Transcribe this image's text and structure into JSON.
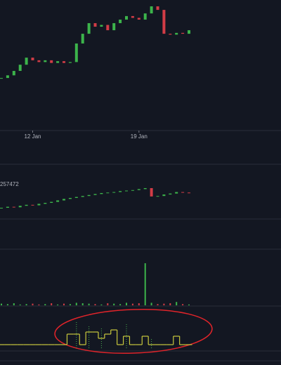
{
  "chart_data": [
    {
      "type": "candlestick",
      "up_color": "#3cb44b",
      "down_color": "#d23c46",
      "values": [
        15,
        18,
        23,
        30,
        38,
        35,
        33,
        35,
        32,
        34,
        32,
        33,
        54,
        65,
        77,
        73,
        75,
        69,
        77,
        81,
        85,
        83,
        81,
        88,
        96,
        92,
        65,
        64,
        66,
        65,
        69
      ],
      "ylim": [
        0,
        100
      ],
      "xticks": [
        {
          "value": 5,
          "label": "12 Jan"
        },
        {
          "value": 22,
          "label": "19 Jan"
        }
      ]
    },
    {
      "type": "candlestick",
      "up_color": "#3cb44b",
      "down_color": "#d23c46",
      "value_label": "257472",
      "values": [
        20,
        22,
        21,
        24,
        26,
        25,
        28,
        30,
        32,
        35,
        38,
        40,
        42,
        44,
        46,
        48,
        50,
        51,
        52,
        54,
        55,
        56,
        58,
        60,
        43,
        44,
        47,
        49,
        52,
        51,
        50
      ],
      "ylim": [
        0,
        100
      ]
    },
    {
      "type": "bar",
      "colors": [
        "#3cb44b",
        "#d23c46"
      ],
      "values": [
        4,
        3,
        5,
        2,
        3,
        4,
        2,
        3,
        5,
        2,
        4,
        3,
        6,
        5,
        4,
        3,
        2,
        5,
        4,
        3,
        6,
        4,
        5,
        100,
        6,
        3,
        4,
        5,
        8,
        3,
        2
      ],
      "ylim": [
        0,
        100
      ]
    },
    {
      "type": "step",
      "ylim": [
        0,
        100
      ],
      "series": [
        {
          "color": "#c8c83c",
          "values": [
            15,
            15,
            15,
            15,
            15,
            15,
            15,
            15,
            15,
            15,
            15,
            40,
            40,
            15,
            45,
            45,
            30,
            40,
            50,
            15,
            35,
            15,
            15,
            35,
            15,
            15,
            15,
            15,
            35,
            15,
            15
          ]
        },
        {
          "color": "#4caf50",
          "values": [
            null,
            null,
            null,
            null,
            null,
            null,
            null,
            null,
            null,
            null,
            null,
            null,
            70,
            null,
            60,
            null,
            55,
            null,
            null,
            null,
            65,
            null,
            null,
            null,
            30,
            null,
            null,
            null,
            null,
            null,
            null
          ]
        }
      ]
    }
  ]
}
